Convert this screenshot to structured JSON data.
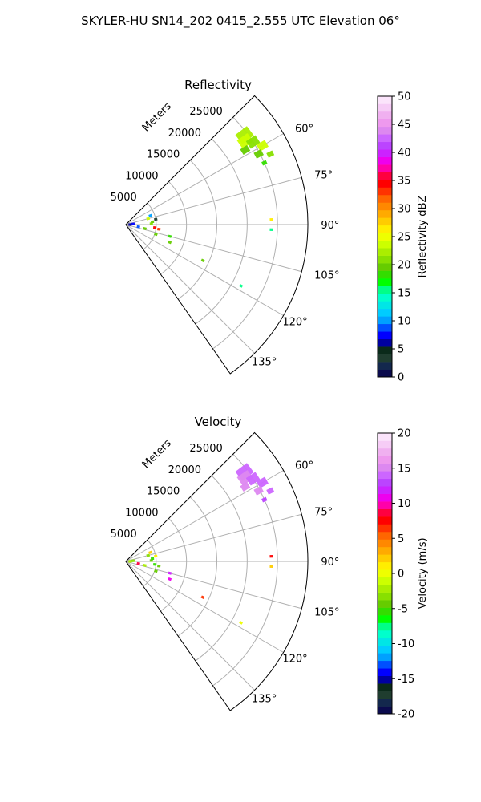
{
  "figure": {
    "suptitle": "SKYLER-HU  SN14_202  0415_2.555 UTC Elevation 06°"
  },
  "chart_data": [
    {
      "type": "polar-ppi",
      "title": "Reflectivity",
      "range_label": "Meters",
      "theta_range_deg": [
        45,
        145
      ],
      "r_range_m": [
        0,
        30000
      ],
      "range_ring_labels": [
        "5000",
        "10000",
        "15000",
        "20000",
        "25000"
      ],
      "range_ring_values": [
        5000,
        10000,
        15000,
        20000,
        25000
      ],
      "angle_tick_labels": [
        "60°",
        "75°",
        "90°",
        "105°",
        "120°",
        "135°"
      ],
      "angle_tick_values": [
        60,
        75,
        90,
        105,
        120,
        135
      ],
      "grid": true,
      "colorbar": {
        "label": "Reflectivity dBZ",
        "min": 0,
        "max": 50,
        "tick_labels": [
          "0",
          "5",
          "10",
          "15",
          "20",
          "25",
          "30",
          "35",
          "40",
          "45",
          "50"
        ],
        "tick_values": [
          0,
          5,
          10,
          15,
          20,
          25,
          30,
          35,
          40,
          45,
          50
        ],
        "colors": [
          "#0b0b4d",
          "#13284d",
          "#1f3d2f",
          "#0a2a1a",
          "#0000a0",
          "#0000ff",
          "#0050ff",
          "#00a0ff",
          "#00ccff",
          "#00e6e6",
          "#00ffcc",
          "#00ff88",
          "#00ff00",
          "#33dd00",
          "#66cc00",
          "#88e000",
          "#aaee00",
          "#ccff00",
          "#eeff00",
          "#ffee00",
          "#ffcc00",
          "#ffaa00",
          "#ff8800",
          "#ff6600",
          "#ff3300",
          "#ff0000",
          "#ff0040",
          "#ff00aa",
          "#ee00ee",
          "#cc22ff",
          "#bb44ff",
          "#cc66ff",
          "#dd88f0",
          "#ee99ee",
          "#f0b0f0",
          "#f6ccf6",
          "#fbe4fb"
        ]
      },
      "echoes": [
        {
          "az": 53,
          "r_m": 24500,
          "value": 22,
          "size": 9
        },
        {
          "az": 55,
          "r_m": 24000,
          "value": 23,
          "size": 8
        },
        {
          "az": 57,
          "r_m": 25000,
          "value": 21,
          "size": 7
        },
        {
          "az": 58,
          "r_m": 23200,
          "value": 19,
          "size": 5
        },
        {
          "az": 60,
          "r_m": 26000,
          "value": 24,
          "size": 6
        },
        {
          "az": 62,
          "r_m": 24800,
          "value": 20,
          "size": 5
        },
        {
          "az": 64,
          "r_m": 26500,
          "value": 21,
          "size": 4
        },
        {
          "az": 66,
          "r_m": 25000,
          "value": 18,
          "size": 3
        },
        {
          "az": 88,
          "r_m": 24000,
          "value": 27,
          "size": 2
        },
        {
          "az": 92,
          "r_m": 24000,
          "value": 15,
          "size": 2
        },
        {
          "az": 118,
          "r_m": 21500,
          "value": 15,
          "size": 2
        },
        {
          "az": 115,
          "r_m": 14000,
          "value": 20,
          "size": 2
        },
        {
          "az": 105,
          "r_m": 7500,
          "value": 18,
          "size": 2
        },
        {
          "az": 112,
          "r_m": 7800,
          "value": 20,
          "size": 2
        },
        {
          "az": 98,
          "r_m": 5500,
          "value": 33,
          "size": 2
        },
        {
          "az": 96,
          "r_m": 4800,
          "value": 35,
          "size": 2
        },
        {
          "az": 88,
          "r_m": 4200,
          "value": 21,
          "size": 2
        },
        {
          "az": 84,
          "r_m": 4400,
          "value": 19,
          "size": 2
        },
        {
          "az": 80,
          "r_m": 5000,
          "value": 4,
          "size": 2
        },
        {
          "az": 75,
          "r_m": 3800,
          "value": 24,
          "size": 2
        },
        {
          "az": 70,
          "r_m": 4300,
          "value": 10,
          "size": 2
        },
        {
          "az": 102,
          "r_m": 3200,
          "value": 20,
          "size": 2
        },
        {
          "az": 100,
          "r_m": 2100,
          "value": 9,
          "size": 2
        },
        {
          "az": 85,
          "r_m": 1200,
          "value": 8,
          "size": 2
        },
        {
          "az": 90,
          "r_m": 700,
          "value": 6,
          "size": 2
        },
        {
          "az": 108,
          "r_m": 5200,
          "value": 19,
          "size": 2
        }
      ]
    },
    {
      "type": "polar-ppi",
      "title": "Velocity",
      "range_label": "Meters",
      "theta_range_deg": [
        45,
        145
      ],
      "r_range_m": [
        0,
        30000
      ],
      "range_ring_labels": [
        "5000",
        "10000",
        "15000",
        "20000",
        "25000"
      ],
      "range_ring_values": [
        5000,
        10000,
        15000,
        20000,
        25000
      ],
      "angle_tick_labels": [
        "60°",
        "75°",
        "90°",
        "105°",
        "120°",
        "135°"
      ],
      "angle_tick_values": [
        60,
        75,
        90,
        105,
        120,
        135
      ],
      "grid": true,
      "colorbar": {
        "label": "Velocity (m/s)",
        "min": -20,
        "max": 20,
        "tick_labels": [
          "-20",
          "-15",
          "-10",
          "-5",
          "0",
          "5",
          "10",
          "15",
          "20"
        ],
        "tick_values": [
          -20,
          -15,
          -10,
          -5,
          0,
          5,
          10,
          15,
          20
        ],
        "colors": [
          "#0b0b4d",
          "#13284d",
          "#1f3d2f",
          "#0a2a1a",
          "#0000a0",
          "#0000ff",
          "#0050ff",
          "#00a0ff",
          "#00ccff",
          "#00e6e6",
          "#00ffcc",
          "#00ff88",
          "#00ff00",
          "#33dd00",
          "#66cc00",
          "#88e000",
          "#aaee00",
          "#ccff00",
          "#eeff00",
          "#ffee00",
          "#ffcc00",
          "#ffaa00",
          "#ff8800",
          "#ff6600",
          "#ff3300",
          "#ff0000",
          "#ff0040",
          "#ff00aa",
          "#ee00ee",
          "#cc22ff",
          "#bb44ff",
          "#cc66ff",
          "#dd88f0",
          "#ee99ee",
          "#f0b0f0",
          "#f6ccf6",
          "#fbe4fb"
        ]
      },
      "echoes": [
        {
          "az": 53,
          "r_m": 24500,
          "value": 14,
          "size": 9
        },
        {
          "az": 55,
          "r_m": 24000,
          "value": 15,
          "size": 8
        },
        {
          "az": 57,
          "r_m": 25000,
          "value": 14,
          "size": 7
        },
        {
          "az": 58,
          "r_m": 23200,
          "value": 15,
          "size": 5
        },
        {
          "az": 60,
          "r_m": 26000,
          "value": 14,
          "size": 6
        },
        {
          "az": 62,
          "r_m": 24800,
          "value": 15,
          "size": 5
        },
        {
          "az": 64,
          "r_m": 26500,
          "value": 14,
          "size": 4
        },
        {
          "az": 66,
          "r_m": 25000,
          "value": 13,
          "size": 3
        },
        {
          "az": 88,
          "r_m": 24000,
          "value": 8,
          "size": 2
        },
        {
          "az": 92,
          "r_m": 24000,
          "value": 2,
          "size": 2
        },
        {
          "az": 118,
          "r_m": 21500,
          "value": 0,
          "size": 2
        },
        {
          "az": 115,
          "r_m": 14000,
          "value": 7,
          "size": 2
        },
        {
          "az": 105,
          "r_m": 7500,
          "value": 12,
          "size": 2
        },
        {
          "az": 112,
          "r_m": 7800,
          "value": 11,
          "size": 2
        },
        {
          "az": 98,
          "r_m": 5500,
          "value": -4,
          "size": 2
        },
        {
          "az": 96,
          "r_m": 4800,
          "value": -5,
          "size": 2
        },
        {
          "az": 88,
          "r_m": 4200,
          "value": -4,
          "size": 2
        },
        {
          "az": 84,
          "r_m": 4400,
          "value": -5,
          "size": 2
        },
        {
          "az": 80,
          "r_m": 5000,
          "value": 1,
          "size": 2
        },
        {
          "az": 75,
          "r_m": 3800,
          "value": -3,
          "size": 2
        },
        {
          "az": 70,
          "r_m": 4300,
          "value": 2,
          "size": 2
        },
        {
          "az": 102,
          "r_m": 3200,
          "value": -2,
          "size": 2
        },
        {
          "az": 100,
          "r_m": 2100,
          "value": 9,
          "size": 2
        },
        {
          "az": 85,
          "r_m": 1200,
          "value": -3,
          "size": 2
        },
        {
          "az": 90,
          "r_m": 700,
          "value": -2,
          "size": 2
        },
        {
          "az": 108,
          "r_m": 5200,
          "value": -4,
          "size": 2
        }
      ]
    }
  ]
}
